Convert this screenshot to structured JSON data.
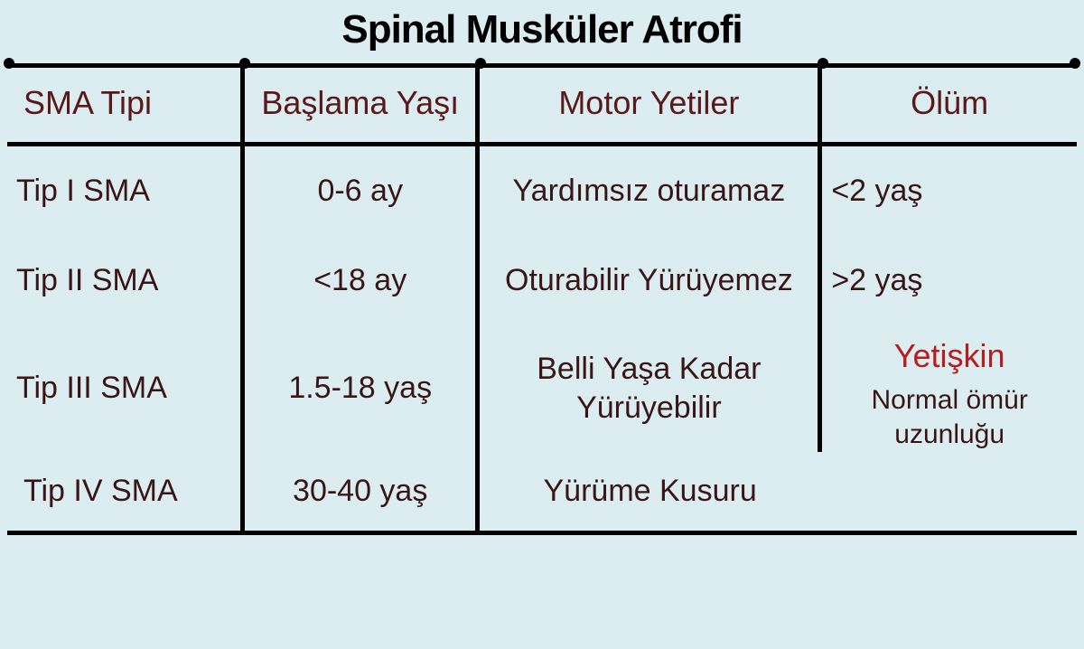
{
  "title": "Spinal Musküler Atrofi",
  "table": {
    "type": "table",
    "background_color": "#dbedf0",
    "border_color": "#000000",
    "border_width": 5,
    "title_color": "#000000",
    "title_fontsize": 44,
    "header_color": "#5a1818",
    "header_fontsize": 36,
    "cell_color": "#3a1515",
    "cell_fontsize": 34,
    "highlight_color": "#b81c1c",
    "column_widths_pct": [
      22,
      22,
      32,
      24
    ],
    "columns": [
      "SMA Tipi",
      "Başlama Yaşı",
      "Motor Yetiler",
      "Ölüm"
    ],
    "rows": [
      {
        "type": "Tip I SMA",
        "onset": "0-6 ay",
        "motor": "Yardımsız oturamaz",
        "death": "<2 yaş"
      },
      {
        "type": "Tip II SMA",
        "onset": "<18 ay",
        "motor": "Oturabilir Yürüyemez",
        "death": ">2 yaş"
      },
      {
        "type": "Tip III SMA",
        "onset": "1.5-18 yaş",
        "motor": "Belli Yaşa Kadar Yürüyebilir",
        "death_highlight": "Yetişkin",
        "death_note": "Normal ömür uzunluğu"
      },
      {
        "type": "Tip IV SMA",
        "onset": "30-40 yaş",
        "motor": "Yürüme Kusuru"
      }
    ]
  }
}
